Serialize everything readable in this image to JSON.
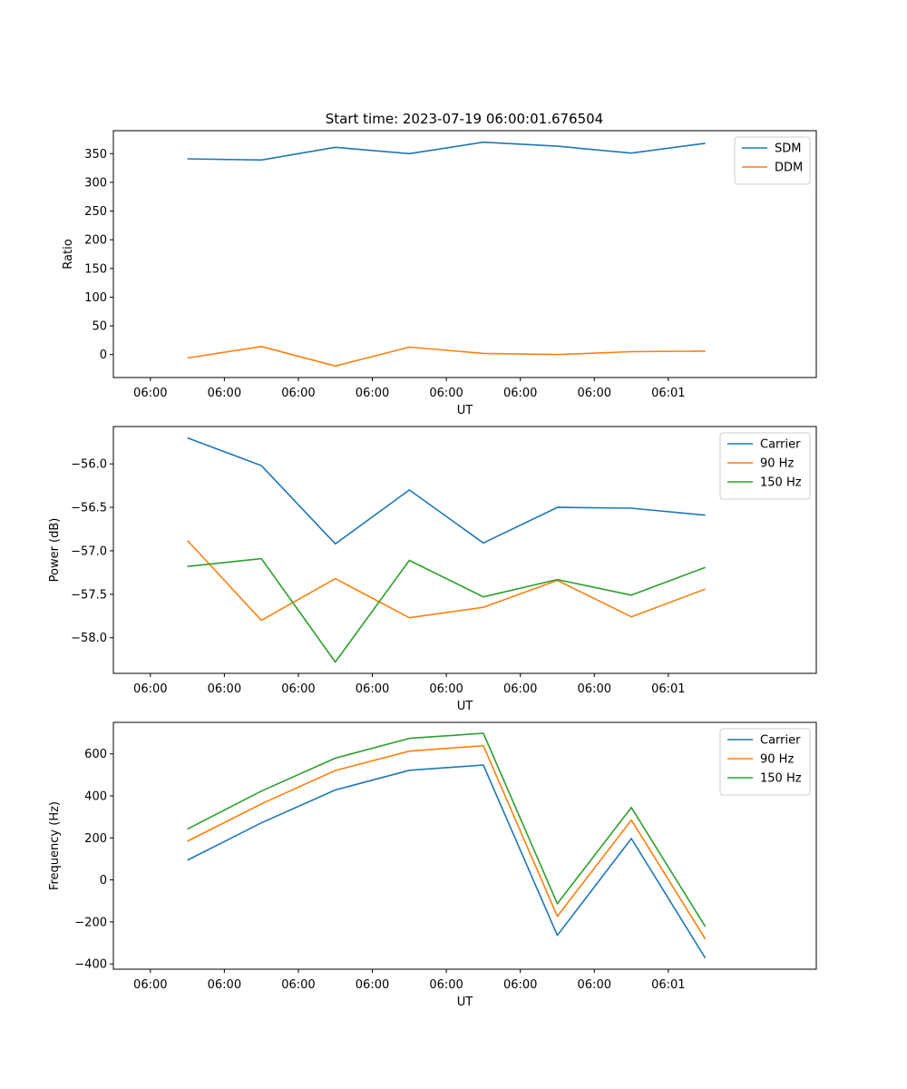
{
  "figure": {
    "title": "Start time: 2023-07-19 06:00:01.676504"
  },
  "chart_data": [
    {
      "type": "line",
      "xlabel": "UT",
      "ylabel": "Ratio",
      "x_tick_labels": [
        "06:00",
        "06:00",
        "06:00",
        "06:00",
        "06:00",
        "06:00",
        "06:00",
        "06:01"
      ],
      "xlim": [
        0.5,
        10.0
      ],
      "x": [
        1.5,
        2.5,
        3.5,
        4.5,
        5.5,
        6.5,
        7.5,
        8.5
      ],
      "ylim": [
        -40,
        390
      ],
      "y_ticks": [
        0,
        50,
        100,
        150,
        200,
        250,
        300,
        350
      ],
      "y_tick_labels": [
        "0",
        "50",
        "100",
        "150",
        "200",
        "250",
        "300",
        "350"
      ],
      "legend_position": "top-right",
      "series": [
        {
          "name": "SDM",
          "color": "#1f77b4",
          "values": [
            341,
            339,
            361,
            350,
            370,
            363,
            351,
            368
          ]
        },
        {
          "name": "DDM",
          "color": "#ff7f0e",
          "values": [
            -6,
            14,
            -20,
            13,
            2,
            0,
            5,
            6
          ]
        }
      ]
    },
    {
      "type": "line",
      "xlabel": "UT",
      "ylabel": "Power (dB)",
      "x_tick_labels": [
        "06:00",
        "06:00",
        "06:00",
        "06:00",
        "06:00",
        "06:00",
        "06:00",
        "06:01"
      ],
      "xlim": [
        0.5,
        10.0
      ],
      "x": [
        1.5,
        2.5,
        3.5,
        4.5,
        5.5,
        6.5,
        7.5,
        8.5
      ],
      "ylim": [
        -58.41,
        -55.57
      ],
      "y_ticks": [
        -58.0,
        -57.5,
        -57.0,
        -56.5,
        -56.0
      ],
      "y_tick_labels": [
        "−58.0",
        "−57.5",
        "−57.0",
        "−56.5",
        "−56.0"
      ],
      "legend_position": "top-right",
      "series": [
        {
          "name": "Carrier",
          "color": "#1f77b4",
          "values": [
            -55.7,
            -56.02,
            -56.92,
            -56.3,
            -56.91,
            -56.5,
            -56.51,
            -56.59
          ]
        },
        {
          "name": "90 Hz",
          "color": "#ff7f0e",
          "values": [
            -56.88,
            -57.8,
            -57.32,
            -57.77,
            -57.65,
            -57.34,
            -57.76,
            -57.44
          ]
        },
        {
          "name": "150 Hz",
          "color": "#2ca02c",
          "values": [
            -57.18,
            -57.09,
            -58.28,
            -57.11,
            -57.53,
            -57.33,
            -57.51,
            -57.19
          ]
        }
      ]
    },
    {
      "type": "line",
      "xlabel": "UT",
      "ylabel": "Frequency (Hz)",
      "x_tick_labels": [
        "06:00",
        "06:00",
        "06:00",
        "06:00",
        "06:00",
        "06:00",
        "06:00",
        "06:01"
      ],
      "xlim": [
        0.5,
        10.0
      ],
      "x": [
        1.5,
        2.5,
        3.5,
        4.5,
        5.5,
        6.5,
        7.5,
        8.5
      ],
      "ylim": [
        -425,
        750
      ],
      "y_ticks": [
        -400,
        -200,
        0,
        200,
        400,
        600
      ],
      "y_tick_labels": [
        "−400",
        "−200",
        "0",
        "200",
        "400",
        "600"
      ],
      "legend_position": "top-right",
      "series": [
        {
          "name": "Carrier",
          "color": "#1f77b4",
          "values": [
            94,
            272,
            428,
            522,
            547,
            -264,
            197,
            -372
          ]
        },
        {
          "name": "90 Hz",
          "color": "#ff7f0e",
          "values": [
            184,
            362,
            521,
            613,
            639,
            -173,
            285,
            -281
          ]
        },
        {
          "name": "150 Hz",
          "color": "#2ca02c",
          "values": [
            242,
            423,
            580,
            674,
            698,
            -113,
            345,
            -222
          ]
        }
      ]
    }
  ]
}
